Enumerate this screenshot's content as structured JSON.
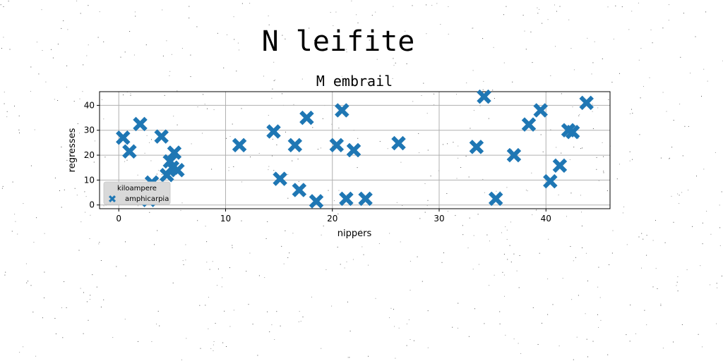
{
  "figure": {
    "suptitle": "N leifite"
  },
  "chart_data": {
    "type": "scatter",
    "title": "M embrail",
    "xlabel": "nippers",
    "ylabel": "regresses",
    "xlim": [
      -1.8,
      46
    ],
    "ylim": [
      -1.5,
      45.5
    ],
    "xticks": [
      0,
      10,
      20,
      30,
      40
    ],
    "yticks": [
      0,
      10,
      20,
      30,
      40
    ],
    "grid": true,
    "marker": "X",
    "color": "#1f77b4",
    "legend": {
      "title": "kiloampere",
      "placement": "lower-left",
      "entries": [
        "amphicarpia"
      ]
    },
    "series": [
      {
        "name": "amphicarpia",
        "points": [
          [
            0.4,
            27
          ],
          [
            1.0,
            21.5
          ],
          [
            2.0,
            32.5
          ],
          [
            2.8,
            2
          ],
          [
            3.1,
            9
          ],
          [
            4.0,
            27.5
          ],
          [
            4.5,
            12
          ],
          [
            4.8,
            17.5
          ],
          [
            5.0,
            15
          ],
          [
            5.2,
            21
          ],
          [
            5.5,
            14
          ],
          [
            11.3,
            24
          ],
          [
            14.5,
            29.5
          ],
          [
            15.1,
            10.5
          ],
          [
            16.5,
            24
          ],
          [
            16.9,
            6
          ],
          [
            17.6,
            35
          ],
          [
            18.5,
            1.5
          ],
          [
            20.4,
            24
          ],
          [
            20.9,
            38
          ],
          [
            21.3,
            2.5
          ],
          [
            22.0,
            22
          ],
          [
            23.1,
            2.5
          ],
          [
            26.2,
            24.8
          ],
          [
            33.5,
            23.3
          ],
          [
            34.2,
            43.5
          ],
          [
            35.3,
            2.5
          ],
          [
            37.0,
            20
          ],
          [
            38.4,
            32.3
          ],
          [
            39.5,
            38
          ],
          [
            40.4,
            9.5
          ],
          [
            41.3,
            15.8
          ],
          [
            42.1,
            30
          ],
          [
            42.5,
            29.3
          ],
          [
            43.8,
            41
          ]
        ]
      }
    ]
  }
}
